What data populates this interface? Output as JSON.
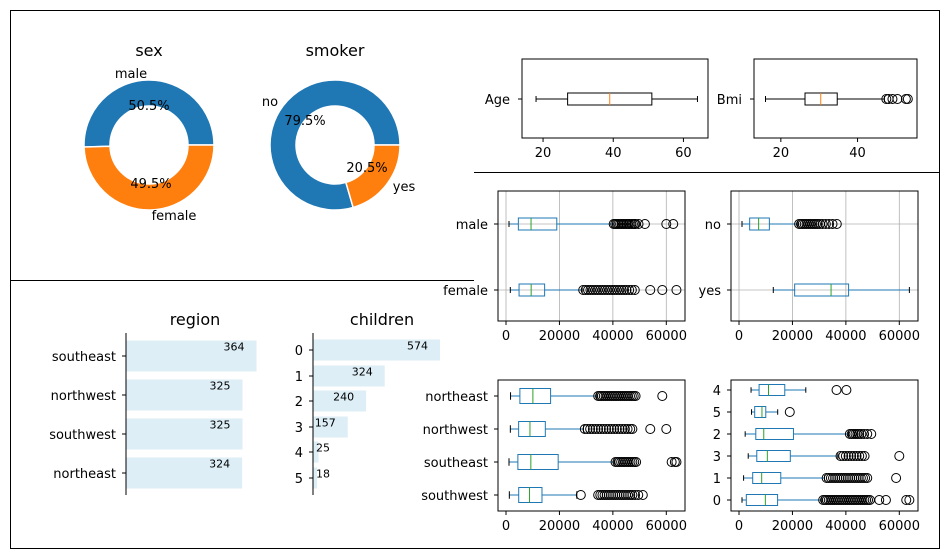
{
  "colors": {
    "blue": "#1f77b4",
    "orange": "#ff7f0e",
    "green": "#2ca02c",
    "bar_fill": "#ddeef6",
    "grid": "#b0b0b0"
  },
  "chart_data": [
    {
      "id": "sex",
      "type": "pie",
      "donut": true,
      "title": "sex",
      "labels": [
        "male",
        "female"
      ],
      "values": [
        50.5,
        49.5
      ],
      "pct_labels": [
        "50.5%",
        "49.5%"
      ]
    },
    {
      "id": "smoker",
      "type": "pie",
      "donut": true,
      "title": "smoker",
      "labels": [
        "no",
        "yes"
      ],
      "values": [
        79.5,
        20.5
      ],
      "pct_labels": [
        "79.5%",
        "20.5%"
      ]
    },
    {
      "id": "age_box",
      "type": "boxplot",
      "orientation": "horizontal",
      "categories": [
        "Age"
      ],
      "xlim": [
        14,
        67
      ],
      "ticks": [
        20,
        40,
        60
      ],
      "boxes": [
        {
          "min": 18,
          "q1": 27,
          "median": 39,
          "q3": 51,
          "max": 64,
          "outliers": []
        }
      ]
    },
    {
      "id": "bmi_box",
      "type": "boxplot",
      "orientation": "horizontal",
      "categories": [
        "Bmi"
      ],
      "xlim": [
        13,
        55.5
      ],
      "ticks": [
        20,
        40
      ],
      "boxes": [
        {
          "min": 16,
          "q1": 26.3,
          "median": 30.4,
          "q3": 34.7,
          "max": 47,
          "outliers": [
            47.5,
            48.1,
            49.1,
            50.4,
            52.6,
            53.1
          ]
        }
      ]
    },
    {
      "id": "charges_by_sex",
      "type": "boxplot",
      "orientation": "horizontal",
      "grid": true,
      "categories": [
        "male",
        "female"
      ],
      "xlim": [
        -3000,
        67000
      ],
      "ticks": [
        0,
        20000,
        40000,
        60000
      ],
      "boxes": [
        {
          "min": 1121,
          "q1": 4619,
          "median": 9369,
          "q3": 19006,
          "max": 40000,
          "outliers": [
            40300,
            40900,
            41500,
            42100,
            42700,
            43300,
            43900,
            44500,
            45100,
            45700,
            46200,
            46900,
            47500,
            48100,
            48500,
            49600,
            52000,
            60000,
            62600
          ]
        },
        {
          "min": 1607,
          "q1": 4885,
          "median": 9413,
          "q3": 14454,
          "max": 28500,
          "outliers": [
            28900,
            29800,
            30700,
            31600,
            32500,
            33400,
            34300,
            35200,
            36100,
            37000,
            37900,
            38800,
            39700,
            40600,
            41500,
            42400,
            43300,
            44200,
            45100,
            46100,
            47100,
            48200,
            54000,
            58500,
            63800
          ]
        }
      ]
    },
    {
      "id": "charges_by_smoker",
      "type": "boxplot",
      "orientation": "horizontal",
      "grid": true,
      "categories": [
        "no",
        "yes"
      ],
      "xlim": [
        -3000,
        67000
      ],
      "ticks": [
        0,
        20000,
        40000,
        60000
      ],
      "boxes": [
        {
          "min": 1121,
          "q1": 3986,
          "median": 7345,
          "q3": 11363,
          "max": 22000,
          "outliers": [
            22500,
            23200,
            23900,
            24600,
            25300,
            26000,
            26700,
            27400,
            28100,
            28800,
            29500,
            30300,
            31300,
            32500,
            33700,
            35000,
            36600
          ]
        },
        {
          "min": 12829,
          "q1": 20826,
          "median": 34456,
          "q3": 41019,
          "max": 63770,
          "outliers": []
        }
      ]
    },
    {
      "id": "region",
      "type": "bar",
      "orientation": "horizontal",
      "title": "region",
      "categories": [
        "southeast",
        "northwest",
        "southwest",
        "northeast"
      ],
      "values": [
        364,
        325,
        325,
        324
      ],
      "xlim": [
        0,
        385
      ]
    },
    {
      "id": "children",
      "type": "bar",
      "orientation": "horizontal",
      "title": "children",
      "categories": [
        "0",
        "1",
        "2",
        "3",
        "4",
        "5"
      ],
      "values": [
        574,
        324,
        240,
        157,
        25,
        18
      ],
      "xlim": [
        0,
        610
      ]
    },
    {
      "id": "charges_by_region",
      "type": "boxplot",
      "orientation": "horizontal",
      "categories": [
        "northeast",
        "northwest",
        "southeast",
        "southwest"
      ],
      "xlim": [
        -3000,
        67000
      ],
      "ticks": [
        0,
        20000,
        40000,
        60000
      ],
      "boxes": [
        {
          "min": 1695,
          "q1": 5194,
          "median": 10058,
          "q3": 16688,
          "max": 34000,
          "outliers": [
            34500,
            35200,
            35900,
            36600,
            37300,
            38000,
            38700,
            39400,
            40100,
            40800,
            41500,
            42200,
            42900,
            43600,
            44300,
            45000,
            45700,
            46400,
            47100,
            47800,
            48500,
            58500
          ]
        },
        {
          "min": 1621,
          "q1": 4720,
          "median": 8966,
          "q3": 14712,
          "max": 29000,
          "outliers": [
            29500,
            30500,
            31500,
            32500,
            33500,
            34500,
            35500,
            36500,
            37500,
            38500,
            39500,
            40500,
            41500,
            42500,
            43500,
            44500,
            45500,
            46500,
            47300,
            54000,
            60000
          ]
        },
        {
          "min": 1122,
          "q1": 4440,
          "median": 9294,
          "q3": 19526,
          "max": 40500,
          "outliers": [
            41000,
            41700,
            42400,
            43100,
            43800,
            44500,
            45200,
            45900,
            46600,
            47300,
            48000,
            48700,
            62000,
            63200,
            63800
          ]
        },
        {
          "min": 1242,
          "q1": 4751,
          "median": 8798,
          "q3": 13463,
          "max": 26500,
          "outliers": [
            28000,
            34500,
            35300,
            36100,
            36900,
            37700,
            38500,
            39300,
            40100,
            40900,
            41700,
            42500,
            43300,
            44100,
            44900,
            45700,
            46500,
            47300,
            48300,
            49500,
            51200
          ]
        }
      ]
    },
    {
      "id": "charges_by_children",
      "type": "boxplot",
      "orientation": "horizontal",
      "categories": [
        "4",
        "5",
        "2",
        "3",
        "1",
        "0"
      ],
      "xlim": [
        -3000,
        67000
      ],
      "ticks": [
        0,
        20000,
        40000,
        60000
      ],
      "boxes": [
        {
          "min": 4504,
          "q1": 7512,
          "median": 11033,
          "q3": 17128,
          "max": 25000,
          "outliers": [
            36500,
            40200
          ]
        },
        {
          "min": 4687,
          "q1": 5874,
          "median": 8589,
          "q3": 10019,
          "max": 14478,
          "outliers": [
            19000
          ]
        },
        {
          "min": 2304,
          "q1": 6285,
          "median": 9265,
          "q3": 20379,
          "max": 41000,
          "outliers": [
            41500,
            42200,
            42900,
            43600,
            44300,
            45000,
            45800,
            46800,
            48000,
            49500
          ]
        },
        {
          "min": 3443,
          "q1": 6653,
          "median": 10601,
          "q3": 19200,
          "max": 37000,
          "outliers": [
            38000,
            39000,
            40000,
            41000,
            42000,
            43000,
            44000,
            45000,
            46000,
            47000,
            60000
          ]
        },
        {
          "min": 1712,
          "q1": 5125,
          "median": 8484,
          "q3": 15632,
          "max": 32000,
          "outliers": [
            32800,
            33600,
            34400,
            35200,
            36000,
            36800,
            37600,
            38400,
            39200,
            40000,
            40800,
            41600,
            42400,
            43200,
            44000,
            44800,
            45600,
            46400,
            47200,
            48000,
            58800
          ]
        },
        {
          "min": 1121,
          "q1": 2734,
          "median": 9857,
          "q3": 14440,
          "max": 31000,
          "outliers": [
            31500,
            32200,
            32900,
            33600,
            34300,
            35000,
            35700,
            36400,
            37100,
            37800,
            38500,
            39200,
            39900,
            40600,
            41300,
            42000,
            42700,
            43400,
            44100,
            44800,
            45500,
            46200,
            46900,
            47600,
            48300,
            49000,
            52500,
            55000,
            62600,
            63770
          ]
        }
      ]
    }
  ]
}
